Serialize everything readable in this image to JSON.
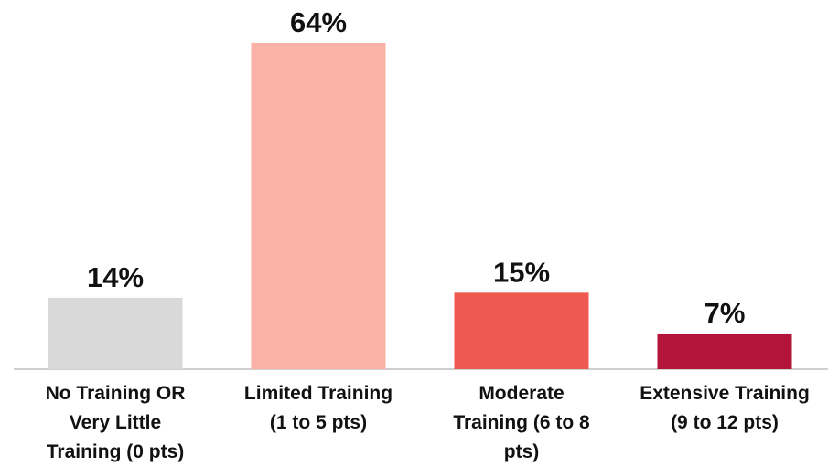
{
  "chart_data": {
    "type": "bar",
    "categories": [
      [
        "No Training OR",
        "Very Little",
        "Training (0 pts)"
      ],
      [
        "Limited Training",
        "(1 to 5 pts)"
      ],
      [
        "Moderate",
        "Training (6 to 8",
        "pts)"
      ],
      [
        "Extensive Training",
        "(9 to 12 pts)"
      ]
    ],
    "values": [
      14,
      64,
      15,
      7
    ],
    "value_labels": [
      "14%",
      "64%",
      "15%",
      "7%"
    ],
    "colors": [
      "#d9d9d9",
      "#fbb2a6",
      "#ee5a4f",
      "#b2143a"
    ],
    "ylim": [
      0,
      64
    ],
    "grid": false,
    "legend": "none"
  }
}
